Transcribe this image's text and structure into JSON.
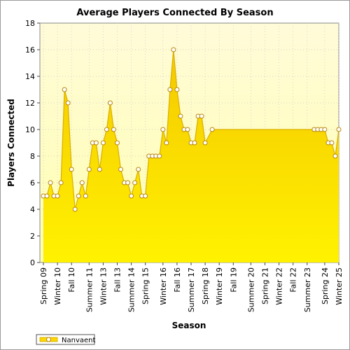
{
  "chart_data": {
    "type": "area",
    "title": "Average Players Connected By Season",
    "xlabel": "Season",
    "ylabel": "Players Connected",
    "ylim": [
      0,
      18
    ],
    "yticks": [
      0,
      2,
      4,
      6,
      8,
      10,
      12,
      14,
      16,
      18
    ],
    "x_tick_labels": [
      "Spring 09",
      "Winter 10",
      "Fall 10",
      "Summer 11",
      "Winter 13",
      "Fall 13",
      "Summer 14",
      "Spring 15",
      "Winter 16",
      "Fall 16",
      "Summer 17",
      "Spring 18",
      "Winter 19",
      "Fall 19",
      "Summer 20",
      "Spring 21",
      "Winter 22",
      "Fall 22",
      "Summer 23",
      "Spring 24",
      "Winter 25"
    ],
    "grid": true,
    "legend_position": "bottom-left",
    "series": [
      {
        "name": "Nanvaent",
        "color": "#ffd700",
        "values": [
          5,
          5,
          6,
          5,
          5,
          6,
          13,
          12,
          7,
          4,
          5,
          6,
          5,
          7,
          9,
          9,
          7,
          9,
          10,
          12,
          10,
          9,
          7,
          6,
          6,
          5,
          6,
          7,
          5,
          5,
          8,
          8,
          8,
          8,
          10,
          9,
          13,
          16,
          13,
          11,
          10,
          10,
          9,
          9,
          11,
          11,
          9,
          null,
          10,
          10,
          10,
          10,
          10,
          10,
          10,
          10,
          10,
          10,
          10,
          10,
          10,
          10,
          10,
          10,
          10,
          10,
          10,
          10,
          10,
          10,
          10,
          10,
          10,
          10,
          10,
          10,
          10,
          10,
          10,
          10,
          10,
          9,
          9,
          8,
          10
        ],
        "markers": [
          1,
          1,
          1,
          1,
          1,
          1,
          1,
          1,
          1,
          1,
          1,
          1,
          1,
          1,
          1,
          1,
          1,
          1,
          1,
          1,
          1,
          1,
          1,
          1,
          1,
          1,
          1,
          1,
          1,
          1,
          1,
          1,
          1,
          1,
          1,
          1,
          1,
          1,
          1,
          1,
          1,
          1,
          1,
          1,
          1,
          1,
          1,
          0,
          1,
          0,
          0,
          0,
          0,
          0,
          0,
          0,
          0,
          0,
          0,
          0,
          0,
          0,
          0,
          0,
          0,
          0,
          0,
          0,
          0,
          0,
          0,
          0,
          0,
          0,
          0,
          0,
          0,
          1,
          1,
          1,
          1,
          1,
          1,
          1,
          1
        ]
      }
    ]
  }
}
